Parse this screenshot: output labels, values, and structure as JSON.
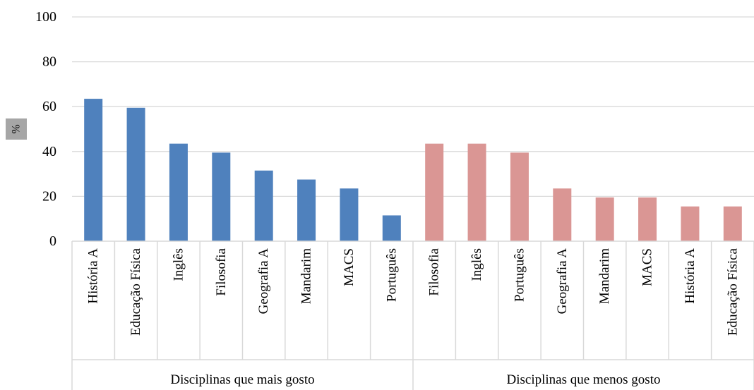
{
  "chart_data": {
    "type": "bar",
    "ylabel": "%",
    "ylim": [
      0,
      100
    ],
    "yticks": [
      0,
      20,
      40,
      60,
      80,
      100
    ],
    "grid": true,
    "groups": [
      {
        "name": "Disciplinas que mais gosto",
        "color": "#4f81bd",
        "categories": [
          "História A",
          "Educação Física",
          "Inglês",
          "Filosofia",
          "Geografia A",
          "Mandarim",
          "MACS",
          "Português"
        ],
        "values": [
          63.5,
          59.5,
          43.5,
          39.5,
          31.5,
          27.5,
          23.5,
          11.5
        ]
      },
      {
        "name": "Disciplinas que menos gosto",
        "color": "#da9694",
        "categories": [
          "Filosofia",
          "Inglês",
          "Português",
          "Geografia A",
          "Mandarim",
          "MACS",
          "História A",
          "Educação Física"
        ],
        "values": [
          43.5,
          43.5,
          39.5,
          23.5,
          19.5,
          19.5,
          15.5,
          15.5
        ]
      }
    ]
  }
}
